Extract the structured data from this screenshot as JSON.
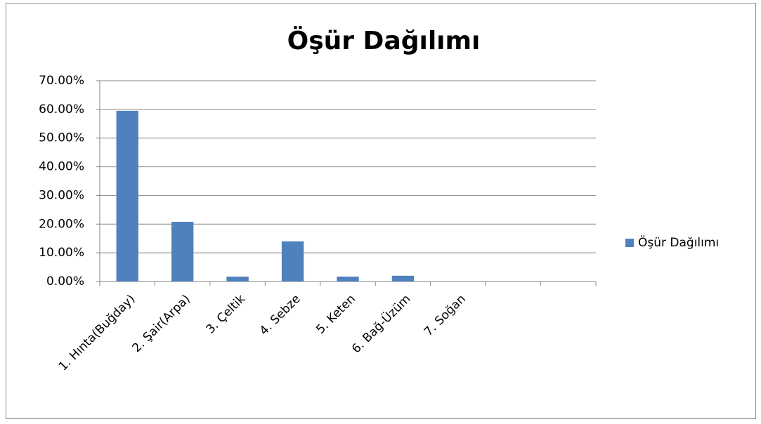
{
  "chart_data": {
    "type": "bar",
    "title": "Öşür Dağılımı",
    "categories": [
      "1. Hınta(Buğday)",
      "2. Şair(Arpa)",
      "3. Çeltik",
      "4. Sebze",
      "5.  Keten",
      "6.  Bağ-Üzüm",
      "7.  Soğan",
      null,
      null
    ],
    "series": [
      {
        "name": "Öşür Dağılımı",
        "color": "#4f81bd",
        "values": [
          59.5,
          20.8,
          1.7,
          14.0,
          1.7,
          2.0,
          0,
          null,
          null
        ]
      }
    ],
    "ylim": [
      0,
      70
    ],
    "yticks": [
      {
        "value": 0,
        "label": "0.00%"
      },
      {
        "value": 10,
        "label": "10.00%"
      },
      {
        "value": 20,
        "label": "20.00%"
      },
      {
        "value": 30,
        "label": "30.00%"
      },
      {
        "value": 40,
        "label": "40.00%"
      },
      {
        "value": 50,
        "label": "50.00%"
      },
      {
        "value": 60,
        "label": "60.00%"
      },
      {
        "value": 70,
        "label": "70.00%"
      }
    ],
    "grid": true,
    "legend": "right"
  }
}
